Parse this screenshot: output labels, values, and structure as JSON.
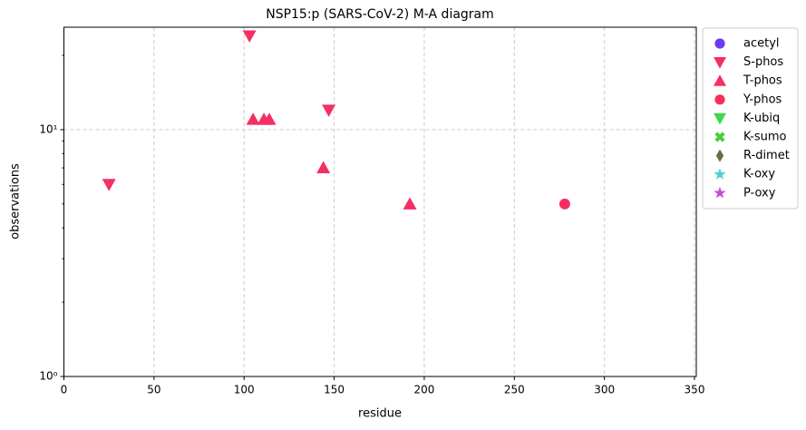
{
  "chart_data": {
    "type": "scatter",
    "title": "NSP15:p (SARS-CoV-2) M-A diagram",
    "x_label": "residue",
    "y_label": "observations",
    "xlim": [
      0,
      351
    ],
    "xticks": [
      0,
      50,
      100,
      150,
      200,
      250,
      300,
      350
    ],
    "ylim": [
      1,
      26
    ],
    "y_log": true,
    "yticks": [
      {
        "value": 1,
        "label": "10⁰"
      },
      {
        "value": 10,
        "label": "10¹"
      }
    ],
    "yminorticks": [
      2,
      3,
      4,
      5,
      6,
      7,
      8,
      9,
      20
    ],
    "grid": true,
    "legend": "outside-right",
    "series": [
      {
        "name": "acetyl",
        "color": "#6a3cf0",
        "marker": "circle",
        "x": [],
        "values": []
      },
      {
        "name": "S-phos",
        "color": "#f52f62",
        "marker": "triangle-down",
        "x": [
          103,
          25,
          147
        ],
        "values": [
          24,
          6,
          12
        ]
      },
      {
        "name": "T-phos",
        "color": "#f52f62",
        "marker": "triangle-up",
        "x": [
          105,
          111,
          114,
          144,
          192
        ],
        "values": [
          11,
          11,
          11,
          7,
          5
        ]
      },
      {
        "name": "Y-phos",
        "color": "#f52f62",
        "marker": "circle",
        "x": [
          278
        ],
        "values": [
          5
        ]
      },
      {
        "name": "K-ubiq",
        "color": "#3fd94a",
        "marker": "triangle-down",
        "x": [],
        "values": []
      },
      {
        "name": "K-sumo",
        "color": "#4ccc3c",
        "marker": "x",
        "x": [],
        "values": []
      },
      {
        "name": "R-dimet",
        "color": "#6b6b47",
        "marker": "diamond",
        "x": [],
        "values": []
      },
      {
        "name": "K-oxy",
        "color": "#4fcfd6",
        "marker": "star",
        "x": [],
        "values": []
      },
      {
        "name": "P-oxy",
        "color": "#c34fd0",
        "marker": "star",
        "x": [],
        "values": []
      }
    ]
  }
}
